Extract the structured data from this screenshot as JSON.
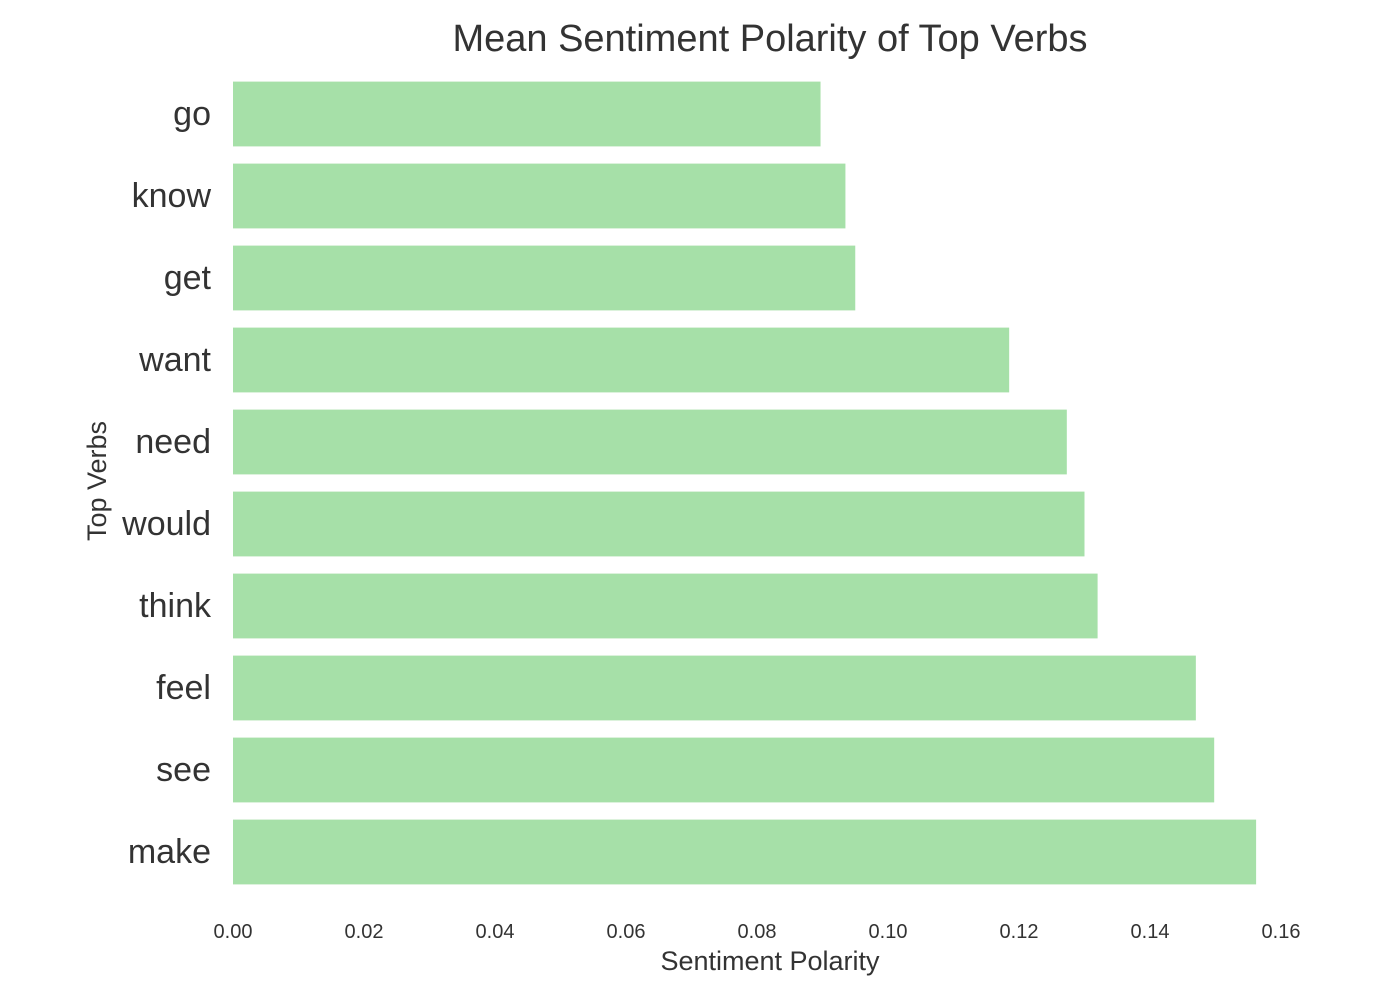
{
  "chart_data": {
    "type": "bar",
    "orientation": "horizontal",
    "title": "Mean Sentiment Polarity of Top Verbs",
    "xlabel": "Sentiment Polarity",
    "ylabel": "Top Verbs",
    "categories": [
      "go",
      "know",
      "get",
      "want",
      "need",
      "would",
      "think",
      "feel",
      "see",
      "make"
    ],
    "values": [
      0.0897,
      0.0935,
      0.095,
      0.1185,
      0.1273,
      0.13,
      0.132,
      0.147,
      0.1498,
      0.1562
    ],
    "xlim": [
      0,
      0.16
    ],
    "xticks": [
      "0.00",
      "0.02",
      "0.04",
      "0.06",
      "0.08",
      "0.10",
      "0.12",
      "0.14",
      "0.16"
    ],
    "grid": false,
    "legend": "none",
    "bar_color": "#a6e0a8"
  }
}
